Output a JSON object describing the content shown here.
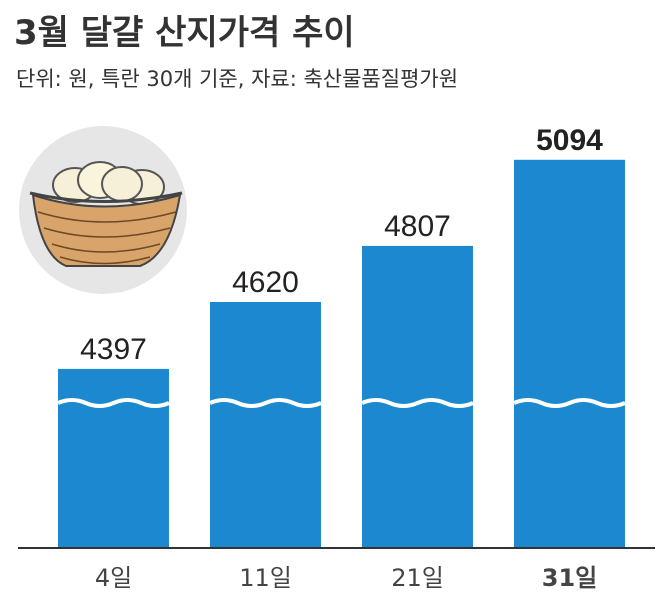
{
  "chart_data": {
    "type": "bar",
    "title": "3월 달걀 산지가격 추이",
    "subtitle": "단위: 원, 특란 30개 기준, 자료: 축산물품질평가원",
    "categories": [
      "4일",
      "11일",
      "21일",
      "31일"
    ],
    "values": [
      4397,
      4620,
      4807,
      5094
    ],
    "color": "#1b88cf",
    "ylim": [
      3800,
      5200
    ],
    "highlight_index": 3
  }
}
